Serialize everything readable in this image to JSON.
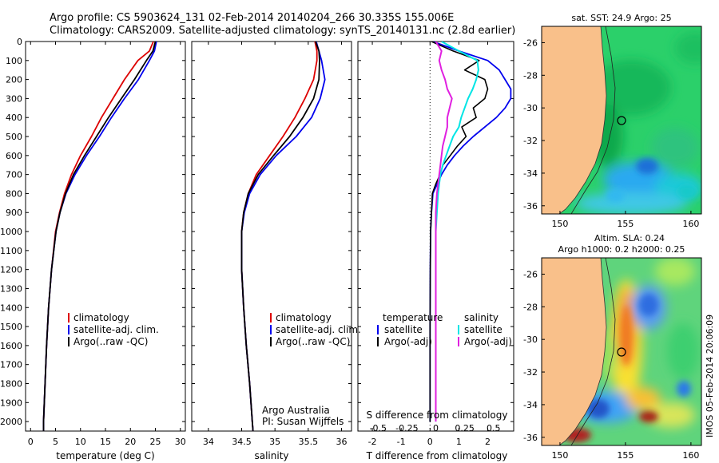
{
  "header": {
    "line1": "Argo profile: CS 5903624_131 02-Feb-2014 20140204_266 30.335S 155.006E",
    "line2": "Climatology: CARS2009. Satellite-adjusted climatology: synTS_20140131.nc (2.8d earlier)"
  },
  "colors": {
    "climatology": "#dd0000",
    "satellite": "#0000ee",
    "argo": "#000000",
    "sat_s": "#00e5e5",
    "argo_s": "#e020e0",
    "land": "#f9c08a"
  },
  "depth_ticks": [
    "0",
    "100",
    "200",
    "300",
    "400",
    "500",
    "600",
    "700",
    "800",
    "900",
    "1000",
    "1100",
    "1200",
    "1300",
    "1400",
    "1500",
    "1600",
    "1700",
    "1800",
    "1900",
    "2000"
  ],
  "panel_temp": {
    "xlabel": "temperature (deg C)",
    "xticks": [
      "0",
      "5",
      "10",
      "15",
      "20",
      "25",
      "30"
    ],
    "legend": [
      "climatology",
      "satellite-adj. clim.",
      "Argo(..raw -QC)"
    ]
  },
  "panel_sal": {
    "xlabel": "salinity",
    "xticks": [
      "34",
      "34.5",
      "35",
      "35.5",
      "36"
    ],
    "legend": [
      "climatology",
      "satellite-adj. clim.",
      "Argo(..raw -QC)"
    ],
    "credit1": "Argo Australia",
    "credit2": "PI: Susan Wijffels"
  },
  "panel_diff": {
    "xlabel": "T difference from climatology",
    "top_label": "S difference from climatology",
    "s_ticks": [
      "-0.5",
      "-0.25",
      "0",
      "0.25",
      "0.5"
    ],
    "t_ticks": [
      "-2",
      "-1",
      "0",
      "1",
      "2"
    ],
    "legend_t_title": "temperature",
    "legend_s_title": "salinity",
    "legend_t": [
      "satellite",
      "Argo(-adj)"
    ],
    "legend_s": [
      "satellite",
      "Argo(-adj)"
    ]
  },
  "map_sst": {
    "title": "sat. SST: 24.9 Argo: 25",
    "yticks": [
      "-26",
      "-28",
      "-30",
      "-32",
      "-34",
      "-36"
    ],
    "xticks": [
      "150",
      "155",
      "160"
    ]
  },
  "map_sla": {
    "title1": "Altim. SLA: 0.24",
    "title2": "Argo h1000: 0.2 h2000: 0.25",
    "yticks": [
      "-26",
      "-28",
      "-30",
      "-32",
      "-34",
      "-36"
    ],
    "xticks": [
      "150",
      "155",
      "160"
    ]
  },
  "side_label": "IMOS 05-Feb-2014 20:06:09",
  "chart_data": [
    {
      "type": "line",
      "xlabel": "temperature (deg C)",
      "ylabel": "",
      "xlim": [
        -1,
        31
      ],
      "ylim": [
        2050,
        0
      ],
      "series": [
        {
          "name": "climatology",
          "depth": [
            0,
            50,
            100,
            200,
            300,
            400,
            500,
            600,
            700,
            800,
            900,
            1000,
            1200,
            1400,
            1600,
            1800,
            2000,
            2050
          ],
          "values": [
            24.6,
            23.8,
            21.5,
            18.8,
            16.5,
            14.2,
            12.2,
            10.0,
            8.2,
            6.8,
            5.8,
            5.0,
            4.2,
            3.6,
            3.2,
            2.9,
            2.6,
            2.6
          ]
        },
        {
          "name": "satellite-adj. clim.",
          "depth": [
            0,
            50,
            100,
            200,
            300,
            400,
            500,
            600,
            700,
            800,
            900,
            1000,
            1200,
            1400,
            1600,
            1800,
            2000,
            2050
          ],
          "values": [
            25.2,
            24.8,
            23.8,
            21.6,
            18.8,
            16.2,
            13.8,
            11.2,
            8.9,
            7.1,
            5.9,
            5.1,
            4.2,
            3.6,
            3.2,
            2.9,
            2.6,
            2.6
          ]
        },
        {
          "name": "Argo(..raw -QC)",
          "depth": [
            0,
            50,
            100,
            200,
            300,
            400,
            500,
            600,
            700,
            800,
            900,
            1000,
            1200,
            1400,
            1600,
            1800,
            2000,
            2050
          ],
          "values": [
            25.0,
            24.5,
            23.2,
            20.8,
            18.2,
            15.6,
            13.2,
            10.8,
            8.6,
            7.0,
            5.9,
            5.1,
            4.2,
            3.6,
            3.2,
            2.9,
            2.6,
            2.6
          ]
        }
      ]
    },
    {
      "type": "line",
      "xlabel": "salinity",
      "ylabel": "",
      "xlim": [
        33.75,
        36.15
      ],
      "ylim": [
        2050,
        0
      ],
      "series": [
        {
          "name": "climatology",
          "depth": [
            0,
            50,
            100,
            200,
            300,
            400,
            500,
            600,
            700,
            800,
            900,
            1000,
            1100,
            1200,
            1400,
            1600,
            1800,
            2000,
            2050
          ],
          "values": [
            35.6,
            35.63,
            35.63,
            35.58,
            35.45,
            35.3,
            35.12,
            34.92,
            34.72,
            34.6,
            34.53,
            34.5,
            34.5,
            34.5,
            34.53,
            34.57,
            34.62,
            34.66,
            34.67
          ]
        },
        {
          "name": "satellite-adj. clim.",
          "depth": [
            0,
            50,
            100,
            200,
            300,
            400,
            500,
            600,
            700,
            800,
            900,
            1000,
            1100,
            1200,
            1400,
            1600,
            1800,
            2000,
            2050
          ],
          "values": [
            35.62,
            35.66,
            35.7,
            35.75,
            35.68,
            35.55,
            35.32,
            35.02,
            34.78,
            34.62,
            34.54,
            34.5,
            34.5,
            34.5,
            34.53,
            34.57,
            34.62,
            34.66,
            34.67
          ]
        },
        {
          "name": "Argo(..raw -QC)",
          "depth": [
            0,
            50,
            100,
            200,
            300,
            400,
            500,
            600,
            700,
            800,
            900,
            1000,
            1100,
            1200,
            1400,
            1600,
            1800,
            2000,
            2050
          ],
          "values": [
            35.61,
            35.66,
            35.67,
            35.66,
            35.58,
            35.42,
            35.22,
            34.98,
            34.75,
            34.6,
            34.53,
            34.5,
            34.5,
            34.5,
            34.53,
            34.57,
            34.62,
            34.66,
            34.67
          ]
        }
      ]
    },
    {
      "type": "line",
      "xlabel": "T difference from climatology",
      "ylabel": "",
      "xlim": [
        -2.5,
        2.9
      ],
      "ylim": [
        2050,
        0
      ],
      "series": [
        {
          "name": "satellite (temperature)",
          "depth": [
            0,
            50,
            100,
            150,
            200,
            250,
            300,
            350,
            400,
            450,
            500,
            550,
            600,
            650,
            700,
            750,
            800,
            900,
            1000,
            1200,
            1500,
            2000
          ],
          "values": [
            0.1,
            1.0,
            2.0,
            2.4,
            2.6,
            2.8,
            2.8,
            2.6,
            2.3,
            1.9,
            1.5,
            1.15,
            0.85,
            0.6,
            0.4,
            0.25,
            0.1,
            0.05,
            0.02,
            0.01,
            0.0,
            0.0
          ]
        },
        {
          "name": "Argo(-adj) (temperature)",
          "depth": [
            0,
            50,
            100,
            150,
            200,
            250,
            300,
            350,
            400,
            450,
            500,
            550,
            600,
            650,
            700,
            750,
            800,
            900,
            1000,
            1200,
            1500,
            2000
          ],
          "values": [
            0.05,
            0.8,
            1.7,
            1.2,
            1.9,
            2.0,
            1.9,
            1.5,
            1.6,
            1.1,
            1.25,
            0.95,
            0.7,
            0.45,
            0.35,
            0.2,
            0.08,
            0.05,
            0.02,
            0.01,
            0.0,
            0.0
          ]
        },
        {
          "name": "satellite (salinity)",
          "depth": [
            0,
            50,
            100,
            150,
            200,
            250,
            300,
            350,
            400,
            450,
            500,
            550,
            600,
            650,
            700,
            750,
            800,
            900,
            1000,
            1200,
            1500,
            2000
          ],
          "values": [
            0.05,
            0.2,
            0.36,
            0.37,
            0.35,
            0.32,
            0.28,
            0.25,
            0.22,
            0.2,
            0.15,
            0.12,
            0.09,
            0.06,
            0.04,
            0.03,
            0.02,
            0.01,
            0.0,
            0.0,
            0.0,
            0.0
          ]
        },
        {
          "name": "Argo(-adj) (salinity)",
          "depth": [
            0,
            50,
            100,
            150,
            200,
            250,
            300,
            350,
            400,
            450,
            500,
            550,
            600,
            650,
            700,
            750,
            800,
            900,
            1000,
            1200,
            1500,
            2000
          ],
          "values": [
            0.0,
            0.05,
            0.03,
            0.05,
            0.08,
            0.1,
            0.14,
            0.12,
            0.1,
            0.1,
            0.08,
            0.06,
            0.05,
            0.04,
            0.03,
            0.02,
            0.01,
            0.0,
            0.0,
            0.0,
            0.0,
            0.0
          ]
        }
      ]
    }
  ]
}
